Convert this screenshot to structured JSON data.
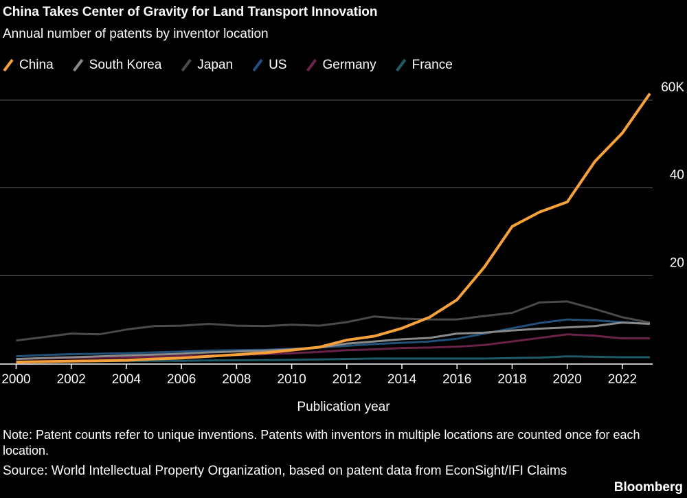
{
  "chart_data": {
    "type": "line",
    "title": "China Takes Center of Gravity for Land Transport Innovation",
    "subtitle": "Annual number of patents by inventor location",
    "x_label": "Publication year",
    "note": "Note: Patent counts refer to unique inventions. Patents with inventors in multiple locations are counted once for each location.",
    "source": "Source: World Intellectual Property Organization, based on patent data from EconSight/IFI Claims",
    "brand": "Bloomberg",
    "x": [
      2000,
      2001,
      2002,
      2003,
      2004,
      2005,
      2006,
      2007,
      2008,
      2009,
      2010,
      2011,
      2012,
      2013,
      2014,
      2015,
      2016,
      2017,
      2018,
      2019,
      2020,
      2021,
      2022,
      2023
    ],
    "xlim": [
      2000,
      2023
    ],
    "xticks": [
      2000,
      2002,
      2004,
      2006,
      2008,
      2010,
      2012,
      2014,
      2016,
      2018,
      2020,
      2022
    ],
    "ylim": [
      0,
      62
    ],
    "yticks": [
      20,
      40,
      {
        "value": 60,
        "label": "60K"
      }
    ],
    "grid": true,
    "legend": "top-left",
    "series": [
      {
        "name": "China",
        "color": "#f6a13a",
        "values": [
          0.3,
          0.4,
          0.5,
          0.6,
          0.7,
          1.0,
          1.2,
          1.6,
          2.0,
          2.4,
          3.0,
          3.7,
          5.3,
          6.2,
          8.0,
          10.5,
          14.5,
          22,
          31.2,
          34.5,
          36.8,
          46,
          52.5,
          61.5
        ]
      },
      {
        "name": "South Korea",
        "color": "#8a8a8a",
        "values": [
          1.0,
          1.2,
          1.4,
          1.6,
          1.8,
          2.0,
          2.2,
          2.5,
          2.7,
          2.9,
          3.2,
          3.6,
          4.5,
          5.0,
          5.5,
          5.8,
          6.8,
          7.0,
          7.5,
          7.9,
          8.2,
          8.5,
          9.3,
          9.0
        ]
      },
      {
        "name": "Japan",
        "color": "#4a4a4a",
        "values": [
          5.2,
          6.0,
          6.8,
          6.6,
          7.7,
          8.5,
          8.6,
          9.0,
          8.6,
          8.5,
          8.8,
          8.6,
          9.4,
          10.7,
          10.2,
          10.0,
          10.0,
          10.8,
          11.5,
          13.9,
          14.1,
          12.4,
          10.5,
          9.3
        ]
      },
      {
        "name": "US",
        "color": "#22507a",
        "values": [
          1.6,
          1.9,
          2.1,
          2.2,
          2.3,
          2.5,
          2.7,
          2.9,
          3.0,
          3.1,
          3.3,
          3.6,
          4.0,
          4.4,
          4.7,
          5.0,
          5.6,
          6.8,
          8.0,
          9.2,
          10.0,
          9.8,
          9.4,
          9.0
        ]
      },
      {
        "name": "Germany",
        "color": "#6a2248",
        "values": [
          1.0,
          1.1,
          1.2,
          1.3,
          1.4,
          1.5,
          1.7,
          1.8,
          1.9,
          2.1,
          2.3,
          2.6,
          3.0,
          3.2,
          3.5,
          3.6,
          3.8,
          4.2,
          5.0,
          5.8,
          6.6,
          6.3,
          5.7,
          5.7
        ]
      },
      {
        "name": "France",
        "color": "#1f5a66",
        "values": [
          0.4,
          0.45,
          0.5,
          0.5,
          0.55,
          0.6,
          0.6,
          0.65,
          0.7,
          0.75,
          0.8,
          0.9,
          1.0,
          1.1,
          1.1,
          1.1,
          1.1,
          1.1,
          1.2,
          1.3,
          1.6,
          1.5,
          1.4,
          1.4
        ]
      }
    ]
  }
}
